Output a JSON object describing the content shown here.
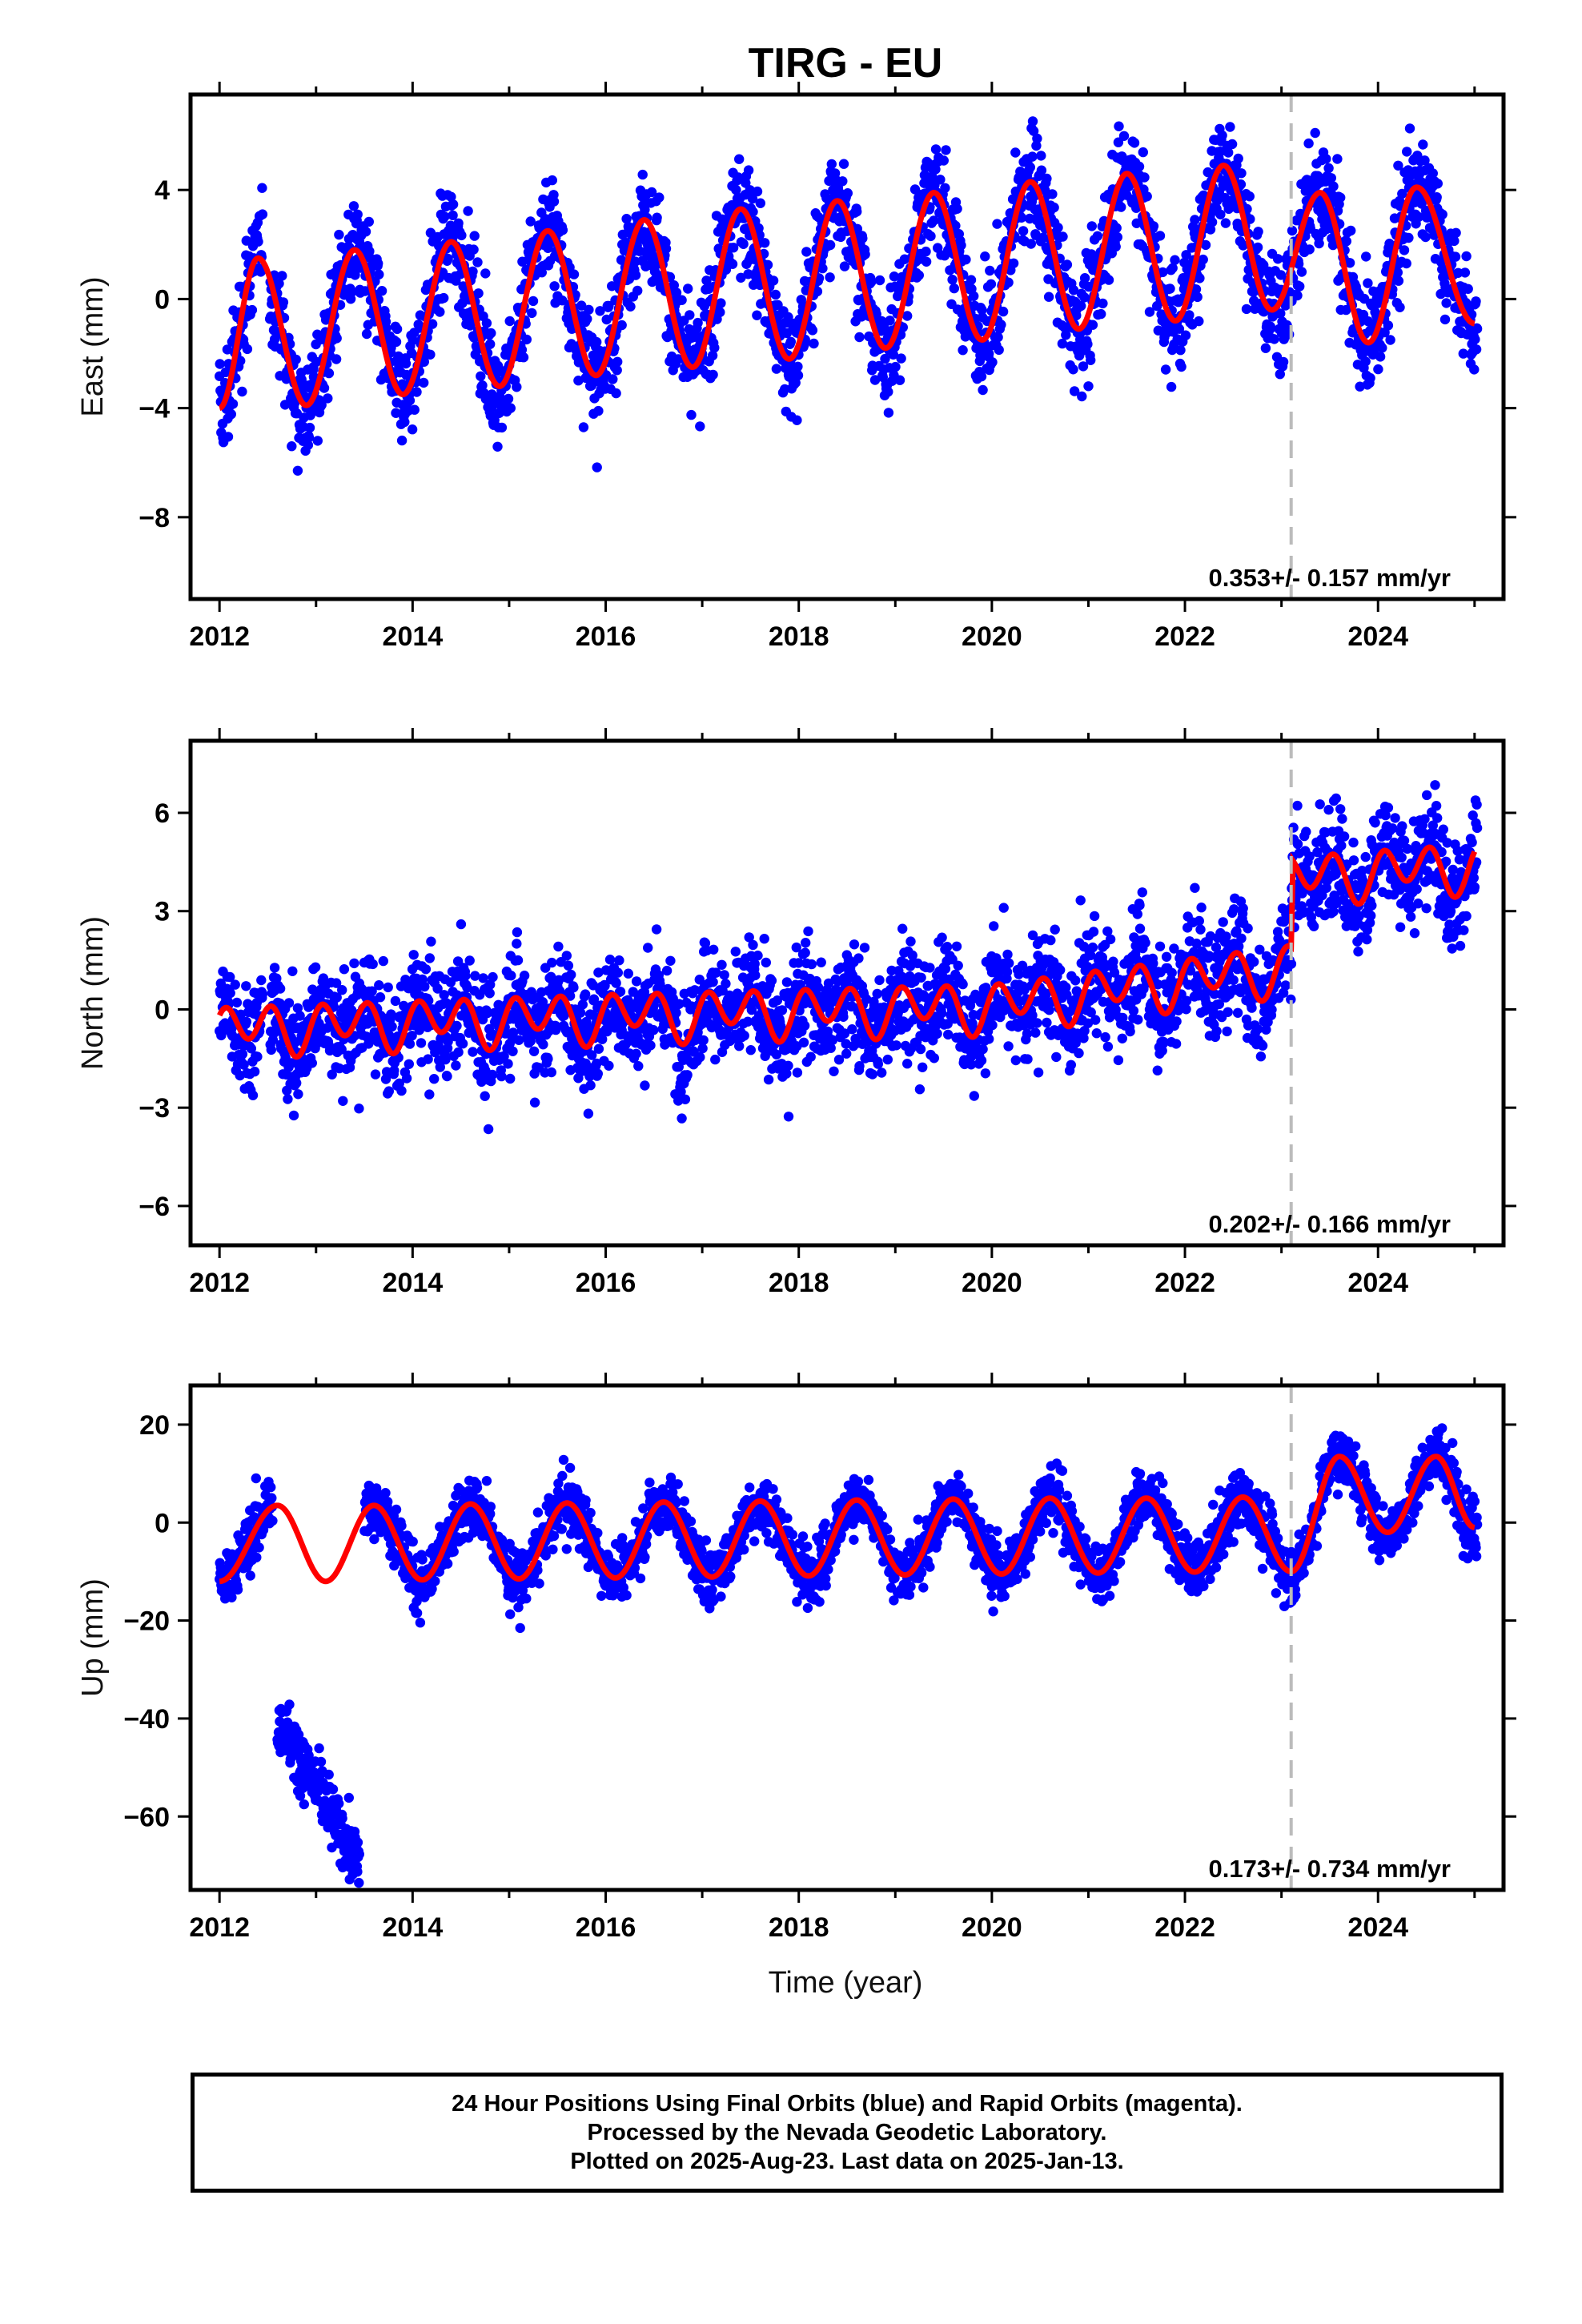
{
  "chart_data": {
    "title": "TIRG - EU",
    "xlabel": "Time (year)",
    "footer": [
      "24 Hour Positions Using Final Orbits (blue) and Rapid Orbits (magenta).",
      "Processed by the Nevada Geodetic Laboratory.",
      "Plotted on 2025-Aug-23. Last data on 2025-Jan-13."
    ],
    "colors": {
      "data": "#0000ff",
      "model": "#ff0000",
      "break": "#bbbbbb",
      "frame": "#000000"
    },
    "break_epoch": 2023.1,
    "x_ticks": [
      2012,
      2014,
      2016,
      2018,
      2020,
      2022,
      2024
    ],
    "panels": [
      {
        "type": "scatter",
        "ylabel": "East (mm)",
        "xlim": [
          2011.7,
          2025.3
        ],
        "ylim": [
          -11,
          7.5
        ],
        "yticks": [
          4,
          0,
          -4,
          -8
        ],
        "ytick_labels": [
          "4",
          "0",
          "−4",
          "−8"
        ],
        "rate_label": "0.353+/- 0.157 mm/yr",
        "model_peaks": [
          [
            2012.4,
            1.5
          ],
          [
            2013.4,
            1.8
          ],
          [
            2014.4,
            2.1
          ],
          [
            2015.4,
            2.5
          ],
          [
            2016.4,
            2.9
          ],
          [
            2017.4,
            3.3
          ],
          [
            2018.4,
            3.6
          ],
          [
            2019.4,
            3.9
          ],
          [
            2020.4,
            4.3
          ],
          [
            2021.4,
            4.6
          ],
          [
            2022.4,
            4.9
          ],
          [
            2023.4,
            3.9
          ],
          [
            2024.4,
            4.1
          ]
        ],
        "model_troughs": [
          [
            2012.0,
            -4.0
          ],
          [
            2012.9,
            -3.9
          ],
          [
            2013.9,
            -3.5
          ],
          [
            2014.9,
            -3.2
          ],
          [
            2015.9,
            -2.8
          ],
          [
            2016.9,
            -2.5
          ],
          [
            2017.9,
            -2.2
          ],
          [
            2018.9,
            -1.8
          ],
          [
            2019.9,
            -1.5
          ],
          [
            2020.9,
            -1.1
          ],
          [
            2021.9,
            -0.8
          ],
          [
            2022.9,
            -0.4
          ],
          [
            2023.9,
            -1.6
          ],
          [
            2025.0,
            -0.9
          ]
        ]
      },
      {
        "type": "scatter",
        "ylabel": "North (mm)",
        "xlim": [
          2011.7,
          2025.3
        ],
        "ylim": [
          -7.2,
          8.2
        ],
        "yticks": [
          6,
          3,
          0,
          -3,
          -6
        ],
        "ytick_labels": [
          "6",
          "3",
          "0",
          "−3",
          "−6"
        ],
        "rate_label": "0.202+/- 0.166 mm/yr",
        "model_trend": [
          [
            2012.0,
            -0.6
          ],
          [
            2016.0,
            -0.2
          ],
          [
            2020.0,
            0.1
          ],
          [
            2023.1,
            1.3
          ],
          [
            2023.12,
            4.0
          ],
          [
            2025.0,
            4.4
          ]
        ],
        "model_amplitude": 0.7
      },
      {
        "type": "scatter",
        "ylabel": "Up (mm)",
        "xlim": [
          2011.7,
          2025.3
        ],
        "ylim": [
          -75,
          28
        ],
        "yticks": [
          20,
          0,
          -20,
          -40,
          -60
        ],
        "ytick_labels": [
          "20",
          "0",
          "−20",
          "−40",
          "−60"
        ],
        "rate_label": "0.173+/- 0.734 mm/yr",
        "model_peaks": [
          [
            2012.6,
            3.5
          ],
          [
            2013.6,
            3.5
          ],
          [
            2014.6,
            3.8
          ],
          [
            2015.6,
            4.0
          ],
          [
            2016.6,
            4.2
          ],
          [
            2017.6,
            4.4
          ],
          [
            2018.6,
            4.6
          ],
          [
            2019.6,
            4.8
          ],
          [
            2020.6,
            5.0
          ],
          [
            2021.6,
            5.0
          ],
          [
            2022.6,
            5.2
          ],
          [
            2023.6,
            13.5
          ],
          [
            2024.6,
            13.5
          ]
        ],
        "model_troughs": [
          [
            2012.0,
            -12.0
          ],
          [
            2013.1,
            -12.0
          ],
          [
            2014.1,
            -11.7
          ],
          [
            2015.1,
            -11.5
          ],
          [
            2016.1,
            -11.3
          ],
          [
            2017.1,
            -11.1
          ],
          [
            2018.1,
            -10.9
          ],
          [
            2019.1,
            -10.7
          ],
          [
            2020.1,
            -10.5
          ],
          [
            2021.1,
            -10.3
          ],
          [
            2022.1,
            -10.1
          ],
          [
            2023.1,
            -10.0
          ],
          [
            2024.1,
            -2.0
          ],
          [
            2025.0,
            -1.0
          ]
        ],
        "outlier_cluster": {
          "x_range": [
            2012.6,
            2013.45
          ],
          "y_start": -40,
          "y_end": -70
        }
      }
    ]
  }
}
